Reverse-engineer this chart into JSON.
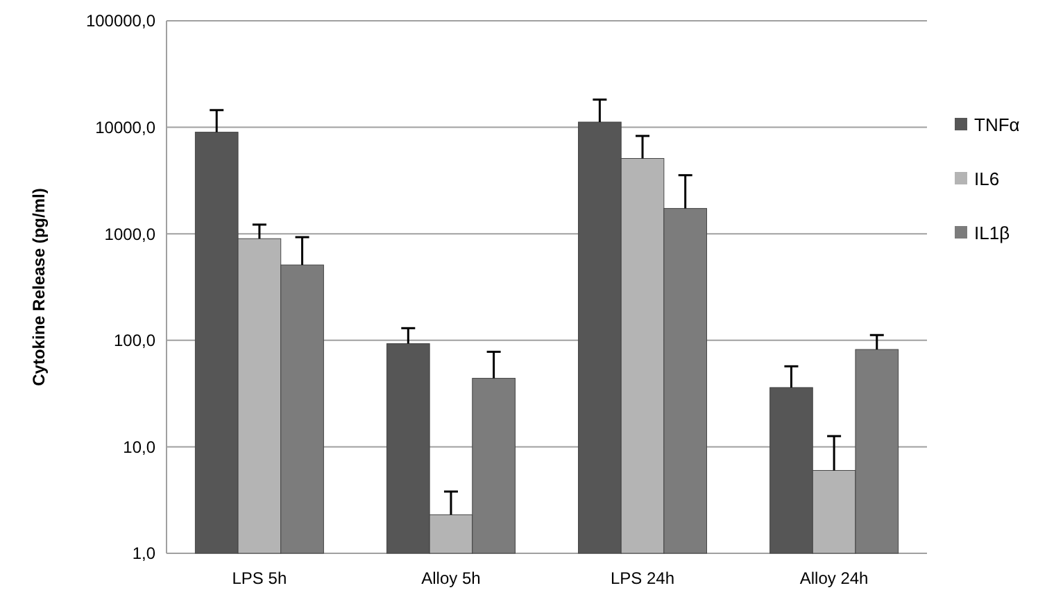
{
  "chart_data": {
    "type": "bar",
    "ylabel": "Cytokine Release (pg/ml)",
    "categories": [
      "LPS 5h",
      "Alloy 5h",
      "LPS 24h",
      "Alloy 24h"
    ],
    "series": [
      {
        "name": "TNFα",
        "color": "#565656",
        "values": [
          9000,
          93,
          11200,
          36
        ],
        "errors": [
          [
            9000,
            14500
          ],
          [
            93,
            130
          ],
          [
            11200,
            18200
          ],
          [
            36,
            57
          ]
        ]
      },
      {
        "name": "IL6",
        "color": "#b4b4b4",
        "values": [
          900,
          2.3,
          5100,
          6
        ],
        "errors": [
          [
            900,
            1220
          ],
          [
            2.3,
            3.8
          ],
          [
            5100,
            8300
          ],
          [
            6,
            12.6
          ]
        ]
      },
      {
        "name": "IL1β",
        "color": "#7c7c7c",
        "values": [
          510,
          44,
          1730,
          82
        ],
        "errors": [
          [
            510,
            930
          ],
          [
            44,
            78
          ],
          [
            1730,
            3550
          ],
          [
            82,
            112
          ]
        ]
      }
    ],
    "log": true,
    "ylim": [
      1,
      100000
    ],
    "yticks": [
      {
        "value": 1,
        "label": "1,0"
      },
      {
        "value": 10,
        "label": "10,0"
      },
      {
        "value": 100,
        "label": "100,0"
      },
      {
        "value": 1000,
        "label": "1000,0"
      },
      {
        "value": 10000,
        "label": "10000,0"
      },
      {
        "value": 100000,
        "label": "100000,0"
      }
    ],
    "grid": "y",
    "legend": "right"
  }
}
